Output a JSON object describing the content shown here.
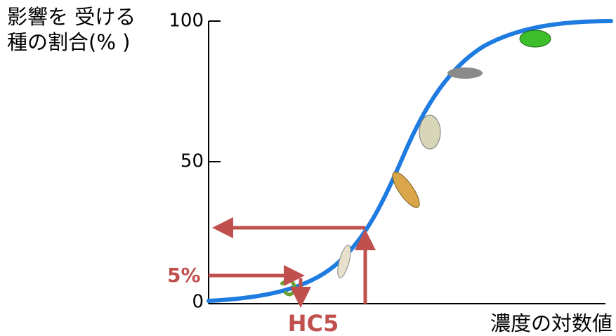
{
  "y_axis": {
    "label_lines": [
      "影響を 受ける",
      "種の割合(% )"
    ],
    "ticks": [
      "100",
      "50",
      "0"
    ]
  },
  "x_axis": {
    "label": "濃度の対数値"
  },
  "annotations": {
    "percent": "5%",
    "hc": "HC5"
  }
}
